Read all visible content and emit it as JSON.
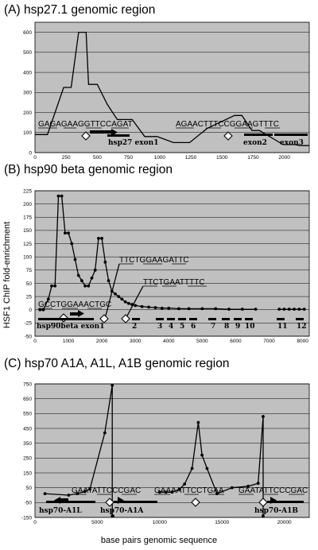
{
  "ylabel": "HSF1 ChIP fold-enrichment",
  "xlabel": "base pairs genomic sequence",
  "chart_data": [
    {
      "type": "line",
      "title": "(A) hsp27.1 genomic region",
      "xlim": [
        0,
        2200
      ],
      "ylim": [
        0,
        650
      ],
      "xticks": [
        0,
        250,
        500,
        750,
        1000,
        1250,
        1500,
        1750,
        2000
      ],
      "yticks": [
        0,
        100,
        200,
        300,
        400,
        500,
        600
      ],
      "series": [
        {
          "x": [
            0,
            100,
            230,
            290,
            350,
            410,
            430,
            500,
            580,
            660,
            780,
            880,
            980,
            1110,
            1240,
            1380,
            1600,
            1660,
            1740,
            1800,
            1990,
            2080,
            2130,
            2200
          ],
          "y": [
            90,
            90,
            325,
            325,
            600,
            600,
            340,
            340,
            240,
            165,
            165,
            80,
            80,
            50,
            50,
            120,
            185,
            185,
            110,
            110,
            40,
            40,
            35,
            35
          ]
        }
      ],
      "annotations": [
        "GAGAGAAGGTTCCAGAT",
        "AGAACTTTCCGGAAGTTTC",
        "hsp27 exon1",
        "exon2",
        "exon3"
      ]
    },
    {
      "type": "line",
      "title": "(B) hsp90 beta genomic region",
      "xlim": [
        0,
        8200
      ],
      "ylim": [
        -50,
        225
      ],
      "xticks": [
        0,
        1000,
        2000,
        3000,
        4000,
        5000,
        6000,
        7000,
        8000
      ],
      "yticks": [
        -50,
        -25,
        0,
        25,
        50,
        75,
        100,
        125,
        150,
        175,
        200,
        225
      ],
      "series": [
        {
          "x": [
            150,
            250,
            400,
            500,
            600,
            700,
            800,
            900,
            1000,
            1100,
            1200,
            1300,
            1400,
            1500,
            1600,
            1700,
            1800,
            1900,
            2000,
            2100,
            2200,
            2300,
            2400,
            2500,
            2600,
            2700,
            2800,
            2900,
            3000,
            3200,
            3400,
            3600,
            3800,
            4000,
            4300,
            4600,
            5000,
            5400,
            5800,
            6200,
            6600
          ],
          "y": [
            0,
            0,
            20,
            45,
            45,
            215,
            215,
            145,
            145,
            125,
            95,
            65,
            55,
            45,
            45,
            60,
            75,
            135,
            135,
            90,
            55,
            35,
            30,
            25,
            20,
            15,
            12,
            10,
            8,
            6,
            5,
            4,
            3,
            3,
            2,
            2,
            2,
            2,
            1,
            1,
            1
          ]
        },
        {
          "x": [
            7300,
            7450,
            7600,
            7750,
            7900,
            8050
          ],
          "y": [
            1,
            1,
            1,
            1,
            1,
            1
          ]
        }
      ],
      "annotations": [
        "TTCTGGAAGATTC",
        "TTCTGAATTTTC",
        "GCCTGGAAACTGC",
        "hsp90beta exon1",
        "2",
        "3",
        "4",
        "5",
        "6",
        "7",
        "8",
        "9",
        "10",
        "11",
        "12"
      ]
    },
    {
      "type": "line",
      "title": "(C) hsp70 A1A, A1L, A1B genomic region",
      "xlim": [
        0,
        22000
      ],
      "ylim": [
        -150,
        750
      ],
      "xticks": [
        0,
        5000,
        10000,
        15000,
        20000
      ],
      "yticks": [
        -150,
        -50,
        50,
        150,
        250,
        350,
        450,
        550,
        650,
        750
      ],
      "series": [
        {
          "x": [
            800,
            2700,
            3400,
            4000,
            4400,
            5600,
            6200,
            6200,
            6250
          ],
          "y": [
            10,
            0,
            10,
            25,
            40,
            420,
            740,
            -140,
            -140
          ]
        },
        {
          "x": [
            10000,
            10500,
            11000,
            11600,
            12000,
            12600,
            13100,
            13400,
            13800,
            14600,
            15800,
            17100,
            17900,
            18300,
            18300
          ],
          "y": [
            20,
            20,
            20,
            40,
            75,
            180,
            490,
            270,
            180,
            10,
            50,
            60,
            80,
            530,
            -140
          ]
        }
      ],
      "annotations": [
        "GAATATTCCCGAC",
        "GAAAATTCCTGAA",
        "GAATATTCCCGAC",
        "hsp70-A1L",
        "hsp70-A1A",
        "hsp70-A1B"
      ]
    }
  ]
}
